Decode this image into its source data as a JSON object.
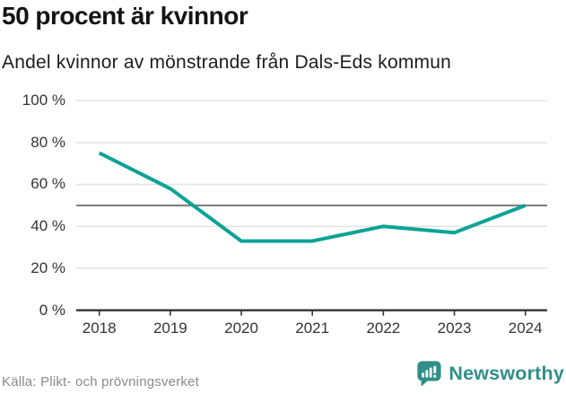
{
  "chart_data": {
    "type": "line",
    "title": "50 procent är kvinnor",
    "subtitle": "Andel kvinnor av mönstrande från Dals-Eds kommun",
    "categories": [
      "2018",
      "2019",
      "2020",
      "2021",
      "2022",
      "2023",
      "2024"
    ],
    "values": [
      75,
      58,
      33,
      33,
      40,
      37,
      50
    ],
    "unit": "%",
    "ylim": [
      0,
      100
    ],
    "yticks": [
      0,
      20,
      40,
      60,
      80,
      100
    ],
    "ytick_labels": [
      "0 %",
      "20 %",
      "40 %",
      "60 %",
      "80 %",
      "100 %"
    ],
    "reference_line": 50,
    "grid": true,
    "legend": "none",
    "colors": {
      "line": "#0aa396",
      "reference": "#7a7a7a",
      "axis": "#333333",
      "grid": "#e3e3e3"
    }
  },
  "footer": {
    "source": "Källa: Plikt- och prövningsverket"
  },
  "branding": {
    "logo_text": "Newsworthy",
    "brand_color": "#2f8f88"
  }
}
